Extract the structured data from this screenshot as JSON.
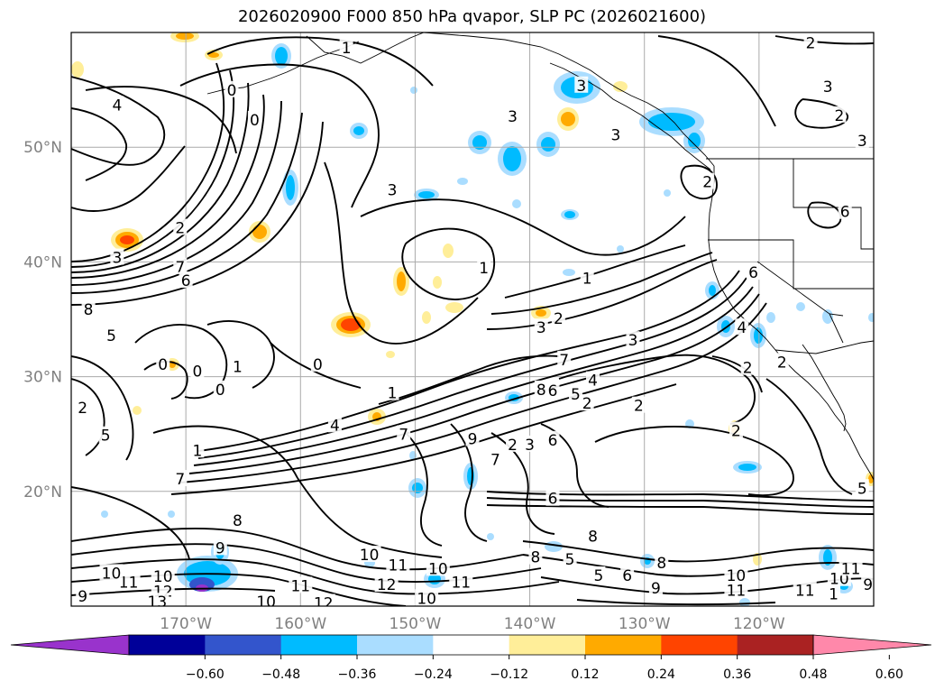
{
  "title": "2026020900 F000 850 hPa qvapor, SLP PC (2026021600)",
  "map": {
    "lon_range": [
      -180,
      -110
    ],
    "lat_range": [
      10,
      60
    ],
    "lat_labels": [
      "20°N",
      "30°N",
      "40°N",
      "50°N"
    ],
    "lon_labels": [
      "170°W",
      "160°W",
      "150°W",
      "140°W",
      "130°W",
      "120°W"
    ],
    "grid": true
  },
  "colorbar": {
    "ticks": [
      "−0.60",
      "−0.48",
      "−0.36",
      "−0.24",
      "−0.12",
      "0.12",
      "0.24",
      "0.36",
      "0.48",
      "0.60"
    ],
    "colors": [
      "#9933cc",
      "#000099",
      "#3355cc",
      "#00bbff",
      "#aaddff",
      "#ffffff",
      "#ffee99",
      "#ffaa00",
      "#ff4400",
      "#aa2222",
      "#ff88aa"
    ],
    "extend": "both"
  },
  "contour_labels": [
    {
      "t": "2",
      "lon": -115.5,
      "lat": 59.0
    },
    {
      "t": "3",
      "lon": -114.0,
      "lat": 55.2
    },
    {
      "t": "2",
      "lon": -113.0,
      "lat": 52.7
    },
    {
      "t": "3",
      "lon": -111.0,
      "lat": 50.5
    },
    {
      "t": "4",
      "lon": -176.0,
      "lat": 53.6
    },
    {
      "t": "0",
      "lon": -166.0,
      "lat": 54.9
    },
    {
      "t": "0",
      "lon": -164.0,
      "lat": 52.3
    },
    {
      "t": "1",
      "lon": -156.0,
      "lat": 58.6
    },
    {
      "t": "3",
      "lon": -152.0,
      "lat": 46.2
    },
    {
      "t": "3",
      "lon": -141.5,
      "lat": 52.6
    },
    {
      "t": "3",
      "lon": -135.5,
      "lat": 55.3
    },
    {
      "t": "3",
      "lon": -132.5,
      "lat": 51.0
    },
    {
      "t": "2",
      "lon": -124.5,
      "lat": 46.9
    },
    {
      "t": "6",
      "lon": -112.5,
      "lat": 44.3
    },
    {
      "t": "2",
      "lon": -170.5,
      "lat": 42.9
    },
    {
      "t": "3",
      "lon": -176.0,
      "lat": 40.3
    },
    {
      "t": "7",
      "lon": -170.5,
      "lat": 39.5
    },
    {
      "t": "6",
      "lon": -170.0,
      "lat": 38.3
    },
    {
      "t": "8",
      "lon": -178.5,
      "lat": 35.8
    },
    {
      "t": "5",
      "lon": -176.5,
      "lat": 33.5
    },
    {
      "t": "0",
      "lon": -169.0,
      "lat": 30.4
    },
    {
      "t": "0",
      "lon": -172.0,
      "lat": 31.0
    },
    {
      "t": "1",
      "lon": -165.5,
      "lat": 30.8
    },
    {
      "t": "0",
      "lon": -167.0,
      "lat": 28.8
    },
    {
      "t": "0",
      "lon": -158.5,
      "lat": 31.0
    },
    {
      "t": "1",
      "lon": -152.0,
      "lat": 28.5
    },
    {
      "t": "2",
      "lon": -179.0,
      "lat": 27.2
    },
    {
      "t": "5",
      "lon": -177.0,
      "lat": 24.8
    },
    {
      "t": "4",
      "lon": -157.0,
      "lat": 25.7
    },
    {
      "t": "7",
      "lon": -151.0,
      "lat": 24.9
    },
    {
      "t": "9",
      "lon": -145.0,
      "lat": 24.5
    },
    {
      "t": "1",
      "lon": -144.0,
      "lat": 39.4
    },
    {
      "t": "2",
      "lon": -137.5,
      "lat": 35.0
    },
    {
      "t": "1",
      "lon": -135.0,
      "lat": 38.5
    },
    {
      "t": "3",
      "lon": -139.0,
      "lat": 34.2
    },
    {
      "t": "7",
      "lon": -137.0,
      "lat": 31.4
    },
    {
      "t": "8",
      "lon": -139.0,
      "lat": 28.8
    },
    {
      "t": "6",
      "lon": -138.0,
      "lat": 28.7
    },
    {
      "t": "5",
      "lon": -136.0,
      "lat": 28.4
    },
    {
      "t": "4",
      "lon": -134.5,
      "lat": 29.6
    },
    {
      "t": "2",
      "lon": -135.0,
      "lat": 27.6
    },
    {
      "t": "2",
      "lon": -130.5,
      "lat": 27.4
    },
    {
      "t": "3",
      "lon": -131.0,
      "lat": 33.1
    },
    {
      "t": "6",
      "lon": -120.5,
      "lat": 39.0
    },
    {
      "t": "4",
      "lon": -121.5,
      "lat": 34.2
    },
    {
      "t": "2",
      "lon": -121.0,
      "lat": 30.7
    },
    {
      "t": "2",
      "lon": -118.0,
      "lat": 31.2
    },
    {
      "t": "2",
      "lon": -122.0,
      "lat": 25.2
    },
    {
      "t": "3",
      "lon": -140.0,
      "lat": 24.0
    },
    {
      "t": "2",
      "lon": -141.5,
      "lat": 24.0
    },
    {
      "t": "6",
      "lon": -138.0,
      "lat": 24.4
    },
    {
      "t": "7",
      "lon": -143.0,
      "lat": 22.7
    },
    {
      "t": "5",
      "lon": -111.0,
      "lat": 20.2
    },
    {
      "t": "1",
      "lon": -169.0,
      "lat": 23.5
    },
    {
      "t": "7",
      "lon": -170.5,
      "lat": 21.0
    },
    {
      "t": "6",
      "lon": -138.0,
      "lat": 19.3
    },
    {
      "t": "8",
      "lon": -165.5,
      "lat": 17.4
    },
    {
      "t": "9",
      "lon": -167.0,
      "lat": 15.0
    },
    {
      "t": "8",
      "lon": -134.5,
      "lat": 16.0
    },
    {
      "t": "5",
      "lon": -136.5,
      "lat": 14.0
    },
    {
      "t": "8",
      "lon": -139.5,
      "lat": 14.2
    },
    {
      "t": "5",
      "lon": -134.0,
      "lat": 12.6
    },
    {
      "t": "6",
      "lon": -131.5,
      "lat": 12.6
    },
    {
      "t": "8",
      "lon": -128.5,
      "lat": 13.7
    },
    {
      "t": "9",
      "lon": -129.0,
      "lat": 11.5
    },
    {
      "t": "10",
      "lon": -122.0,
      "lat": 12.6
    },
    {
      "t": "11",
      "lon": -122.0,
      "lat": 11.3
    },
    {
      "t": "10",
      "lon": -154.0,
      "lat": 14.4
    },
    {
      "t": "11",
      "lon": -151.5,
      "lat": 13.5
    },
    {
      "t": "12",
      "lon": -152.5,
      "lat": 11.8
    },
    {
      "t": "10",
      "lon": -148.0,
      "lat": 13.2
    },
    {
      "t": "11",
      "lon": -146.0,
      "lat": 12.0
    },
    {
      "t": "10",
      "lon": -149.0,
      "lat": 10.6
    },
    {
      "t": "11",
      "lon": -160.0,
      "lat": 11.7
    },
    {
      "t": "11",
      "lon": -175.0,
      "lat": 12.0
    },
    {
      "t": "12",
      "lon": -172.0,
      "lat": 11.2
    },
    {
      "t": "10",
      "lon": -176.5,
      "lat": 12.8
    },
    {
      "t": "10",
      "lon": -172.0,
      "lat": 12.5
    },
    {
      "t": "13",
      "lon": -172.5,
      "lat": 10.3
    },
    {
      "t": "9",
      "lon": -179.0,
      "lat": 10.8
    },
    {
      "t": "10",
      "lon": -163.0,
      "lat": 10.3
    },
    {
      "t": "12",
      "lon": -158.0,
      "lat": 10.2
    },
    {
      "t": "10",
      "lon": -113.0,
      "lat": 12.3
    },
    {
      "t": "11",
      "lon": -112.0,
      "lat": 13.2
    },
    {
      "t": "9",
      "lon": -110.5,
      "lat": 11.8
    },
    {
      "t": "11",
      "lon": -116.0,
      "lat": 11.3
    },
    {
      "t": "1",
      "lon": -113.5,
      "lat": 11.0
    }
  ]
}
